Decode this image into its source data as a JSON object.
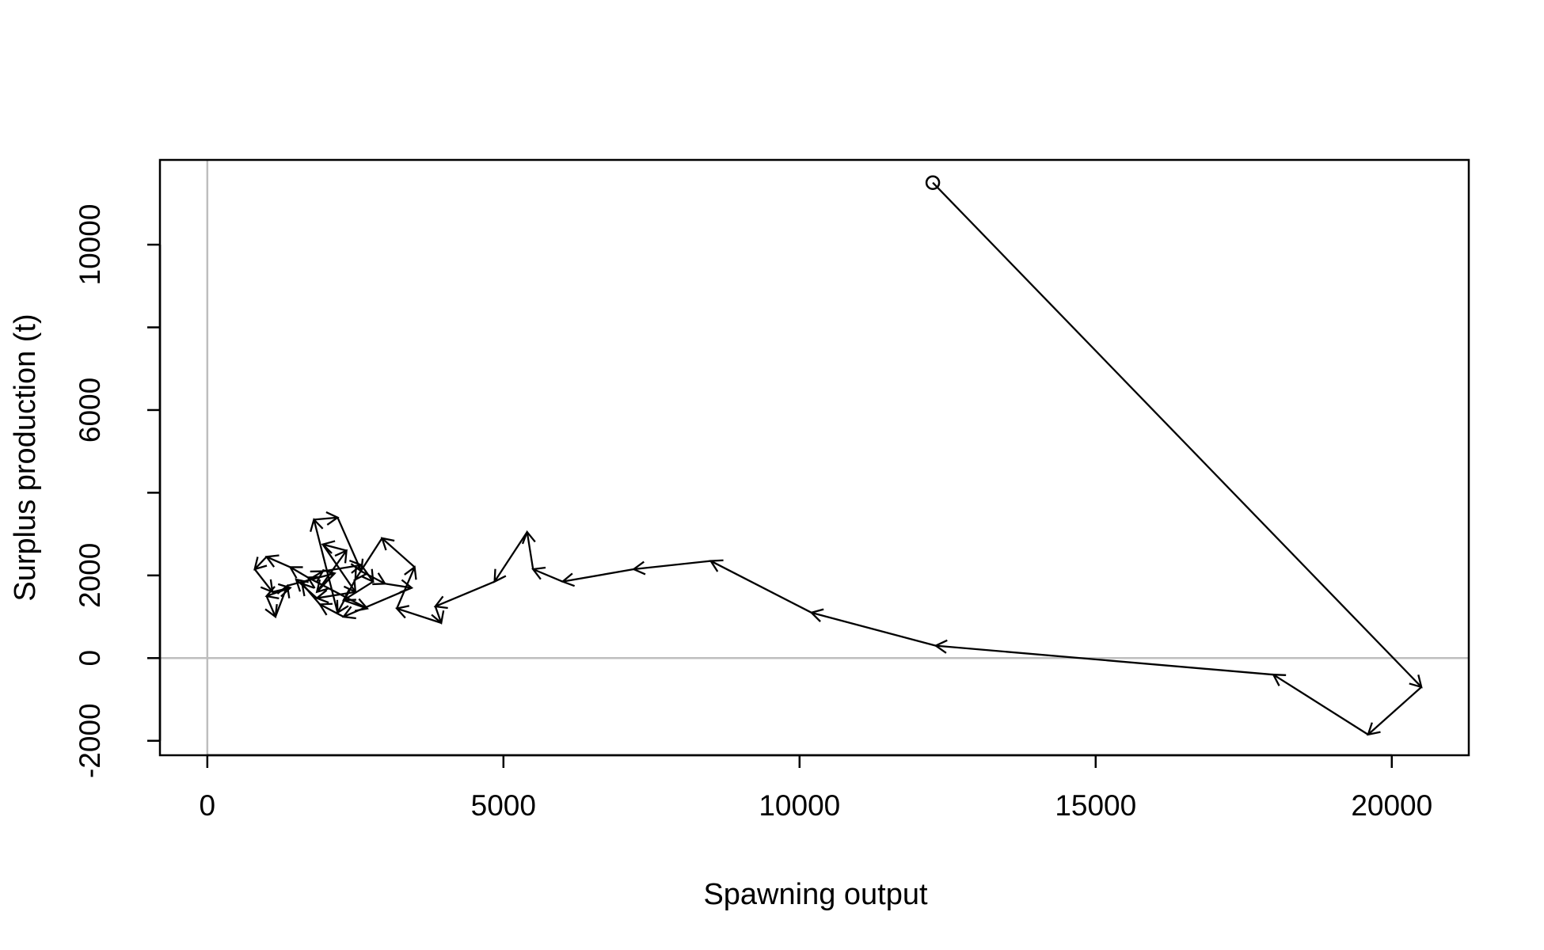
{
  "chart_data": {
    "type": "line",
    "title": "",
    "xlabel": "Spawning output",
    "ylabel": "Surplus production (t)",
    "xlim": [
      -800,
      21300
    ],
    "ylim": [
      -2350,
      12050
    ],
    "x_ticks": [
      0,
      5000,
      10000,
      15000,
      20000
    ],
    "x_tick_labels": [
      "0",
      "5000",
      "10000",
      "15000",
      "20000"
    ],
    "y_ticks": [
      -2000,
      0,
      2000,
      6000,
      10000
    ],
    "y_tick_labels": [
      "-2000",
      "0",
      "2000",
      "6000",
      "10000"
    ],
    "y_minor_ticks": [
      4000,
      8000
    ],
    "reference_lines": {
      "x": 0,
      "y": 0,
      "color": "#bebebe"
    },
    "grid": false,
    "legend": "none",
    "line_color": "#000000",
    "start_marker": "open-circle",
    "segment_style": "arrows",
    "series": [
      {
        "points": [
          [
            12250,
            11500
          ],
          [
            20500,
            -700
          ],
          [
            19600,
            -1850
          ],
          [
            18000,
            -400
          ],
          [
            12300,
            300
          ],
          [
            10200,
            1100
          ],
          [
            8500,
            2350
          ],
          [
            7200,
            2150
          ],
          [
            6000,
            1850
          ],
          [
            5500,
            2150
          ],
          [
            5400,
            3050
          ],
          [
            4850,
            1850
          ],
          [
            3850,
            1250
          ],
          [
            3950,
            850
          ],
          [
            3200,
            1200
          ],
          [
            3500,
            2200
          ],
          [
            2950,
            2900
          ],
          [
            2500,
            1900
          ],
          [
            2200,
            1100
          ],
          [
            1800,
            3350
          ],
          [
            2200,
            3400
          ],
          [
            2600,
            2100
          ],
          [
            3000,
            1800
          ],
          [
            3450,
            1700
          ],
          [
            2300,
            1000
          ],
          [
            1900,
            1300
          ],
          [
            1600,
            1800
          ],
          [
            1950,
            2100
          ],
          [
            2600,
            2250
          ],
          [
            2800,
            1850
          ],
          [
            2300,
            1400
          ],
          [
            2700,
            1200
          ],
          [
            1700,
            1950
          ],
          [
            1400,
            2200
          ],
          [
            1000,
            2450
          ],
          [
            800,
            2150
          ],
          [
            1100,
            1600
          ],
          [
            1400,
            1700
          ],
          [
            1000,
            1500
          ],
          [
            1150,
            1000
          ],
          [
            1350,
            1750
          ],
          [
            2150,
            2050
          ],
          [
            1850,
            1600
          ],
          [
            2350,
            2600
          ],
          [
            1950,
            2750
          ],
          [
            2500,
            1600
          ],
          [
            1850,
            1450
          ],
          [
            1500,
            1900
          ]
        ]
      }
    ]
  }
}
